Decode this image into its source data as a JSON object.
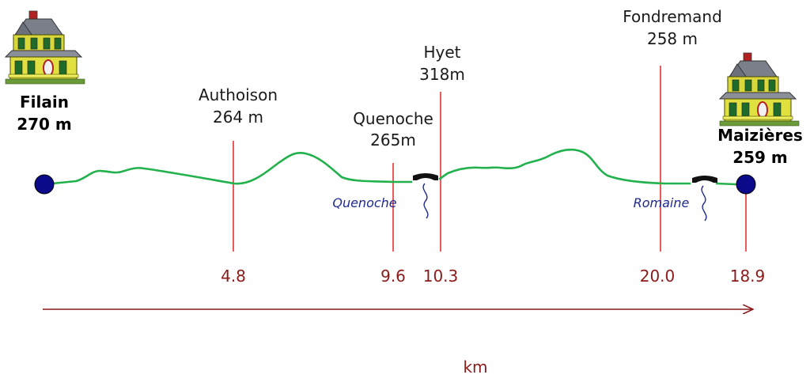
{
  "colors": {
    "profile": "#22b14c",
    "marker_line": "#e83232",
    "km_text": "#8b1a1a",
    "axis": "#8b1a1a",
    "endpoint": "#0a0a8a",
    "river": "#1f2a8c"
  },
  "endpoints": {
    "start": {
      "name": "Filain",
      "altitude": "270 m",
      "icon": "house-icon"
    },
    "end": {
      "name": "Maizières",
      "altitude": "259 m",
      "icon": "house-icon"
    }
  },
  "waypoints": [
    {
      "id": "authoison",
      "name": "Authoison",
      "altitude": "264 m",
      "km": "4.8"
    },
    {
      "id": "quenoche",
      "name": "Quenoche",
      "altitude": "265m",
      "km": "9.6"
    },
    {
      "id": "hyet",
      "name": "Hyet",
      "altitude": "318m",
      "km": "10.3"
    },
    {
      "id": "fondremand",
      "name": "Fondremand",
      "altitude": "258 m",
      "km": "20.0"
    },
    {
      "id": "maizieres",
      "km": "18.9"
    }
  ],
  "rivers": [
    {
      "id": "quenoche",
      "name": "Quenoche",
      "icon": "bridge-icon"
    },
    {
      "id": "romaine",
      "name": "Romaine",
      "icon": "bridge-icon"
    }
  ],
  "axis": {
    "label": "km"
  }
}
